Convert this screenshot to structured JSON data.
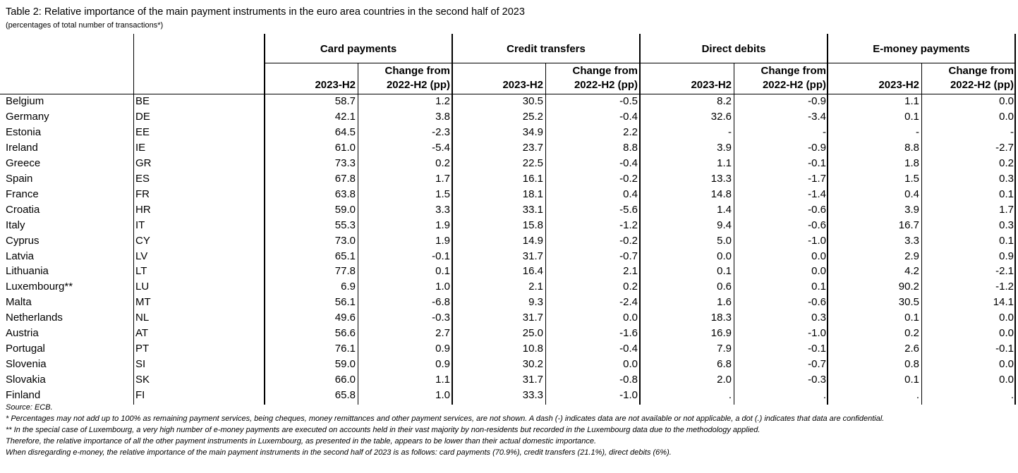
{
  "title": "Table 2: Relative importance of the main payment instruments in the euro area countries in the second half of 2023",
  "subtitle": "(percentages of total number of transactions*)",
  "groups": [
    "Card payments",
    "Credit transfers",
    "Direct debits",
    "E-money payments"
  ],
  "subheaders": {
    "period": "2023-H2",
    "change_line1": "Change from",
    "change_line2": "2022-H2 (pp)"
  },
  "rows": [
    {
      "country": "Belgium",
      "code": "BE",
      "values": [
        "58.7",
        "1.2",
        "30.5",
        "-0.5",
        "8.2",
        "-0.9",
        "1.1",
        "0.0"
      ]
    },
    {
      "country": "Germany",
      "code": "DE",
      "values": [
        "42.1",
        "3.8",
        "25.2",
        "-0.4",
        "32.6",
        "-3.4",
        "0.1",
        "0.0"
      ]
    },
    {
      "country": "Estonia",
      "code": "EE",
      "values": [
        "64.5",
        "-2.3",
        "34.9",
        "2.2",
        "-",
        "-",
        "-",
        "-"
      ]
    },
    {
      "country": "Ireland",
      "code": "IE",
      "values": [
        "61.0",
        "-5.4",
        "23.7",
        "8.8",
        "3.9",
        "-0.9",
        "8.8",
        "-2.7"
      ]
    },
    {
      "country": "Greece",
      "code": "GR",
      "values": [
        "73.3",
        "0.2",
        "22.5",
        "-0.4",
        "1.1",
        "-0.1",
        "1.8",
        "0.2"
      ]
    },
    {
      "country": "Spain",
      "code": "ES",
      "values": [
        "67.8",
        "1.7",
        "16.1",
        "-0.2",
        "13.3",
        "-1.7",
        "1.5",
        "0.3"
      ]
    },
    {
      "country": "France",
      "code": "FR",
      "values": [
        "63.8",
        "1.5",
        "18.1",
        "0.4",
        "14.8",
        "-1.4",
        "0.4",
        "0.1"
      ]
    },
    {
      "country": "Croatia",
      "code": "HR",
      "values": [
        "59.0",
        "3.3",
        "33.1",
        "-5.6",
        "1.4",
        "-0.6",
        "3.9",
        "1.7"
      ]
    },
    {
      "country": "Italy",
      "code": "IT",
      "values": [
        "55.3",
        "1.9",
        "15.8",
        "-1.2",
        "9.4",
        "-0.6",
        "16.7",
        "0.3"
      ]
    },
    {
      "country": "Cyprus",
      "code": "CY",
      "values": [
        "73.0",
        "1.9",
        "14.9",
        "-0.2",
        "5.0",
        "-1.0",
        "3.3",
        "0.1"
      ]
    },
    {
      "country": "Latvia",
      "code": "LV",
      "values": [
        "65.1",
        "-0.1",
        "31.7",
        "-0.7",
        "0.0",
        "0.0",
        "2.9",
        "0.9"
      ]
    },
    {
      "country": "Lithuania",
      "code": "LT",
      "values": [
        "77.8",
        "0.1",
        "16.4",
        "2.1",
        "0.1",
        "0.0",
        "4.2",
        "-2.1"
      ]
    },
    {
      "country": "Luxembourg**",
      "code": "LU",
      "values": [
        "6.9",
        "1.0",
        "2.1",
        "0.2",
        "0.6",
        "0.1",
        "90.2",
        "-1.2"
      ]
    },
    {
      "country": "Malta",
      "code": "MT",
      "values": [
        "56.1",
        "-6.8",
        "9.3",
        "-2.4",
        "1.6",
        "-0.6",
        "30.5",
        "14.1"
      ]
    },
    {
      "country": "Netherlands",
      "code": "NL",
      "values": [
        "49.6",
        "-0.3",
        "31.7",
        "0.0",
        "18.3",
        "0.3",
        "0.1",
        "0.0"
      ]
    },
    {
      "country": "Austria",
      "code": "AT",
      "values": [
        "56.6",
        "2.7",
        "25.0",
        "-1.6",
        "16.9",
        "-1.0",
        "0.2",
        "0.0"
      ]
    },
    {
      "country": "Portugal",
      "code": "PT",
      "values": [
        "76.1",
        "0.9",
        "10.8",
        "-0.4",
        "7.9",
        "-0.1",
        "2.6",
        "-0.1"
      ]
    },
    {
      "country": "Slovenia",
      "code": "SI",
      "values": [
        "59.0",
        "0.9",
        "30.2",
        "0.0",
        "6.8",
        "-0.7",
        "0.8",
        "0.0"
      ]
    },
    {
      "country": "Slovakia",
      "code": "SK",
      "values": [
        "66.0",
        "1.1",
        "31.7",
        "-0.8",
        "2.0",
        "-0.3",
        "0.1",
        "0.0"
      ]
    },
    {
      "country": "Finland",
      "code": "FI",
      "values": [
        "65.8",
        "1.0",
        "33.3",
        "-1.0",
        ".",
        ".",
        ".",
        "."
      ]
    }
  ],
  "footnotes": [
    "Source: ECB.",
    "* Percentages may not add up to 100% as remaining payment services, being cheques, money remittances and other payment services, are not shown. A dash (-) indicates data are not available or not applicable, a dot (.) indicates that data are confidential.",
    "** In the special case of Luxembourg, a very high number of e-money payments are executed on accounts held in their vast majority by non-residents but recorded in the Luxembourg data due to the methodology applied.",
    "Therefore, the relative importance of all the other payment instruments in Luxembourg, as presented in the table, appears to be lower than their actual domestic importance.",
    "When disregarding e-money, the relative importance of the main payment instruments in the second half of 2023 is as follows: card payments (70.9%), credit transfers (21.1%), direct debits (6%)."
  ]
}
